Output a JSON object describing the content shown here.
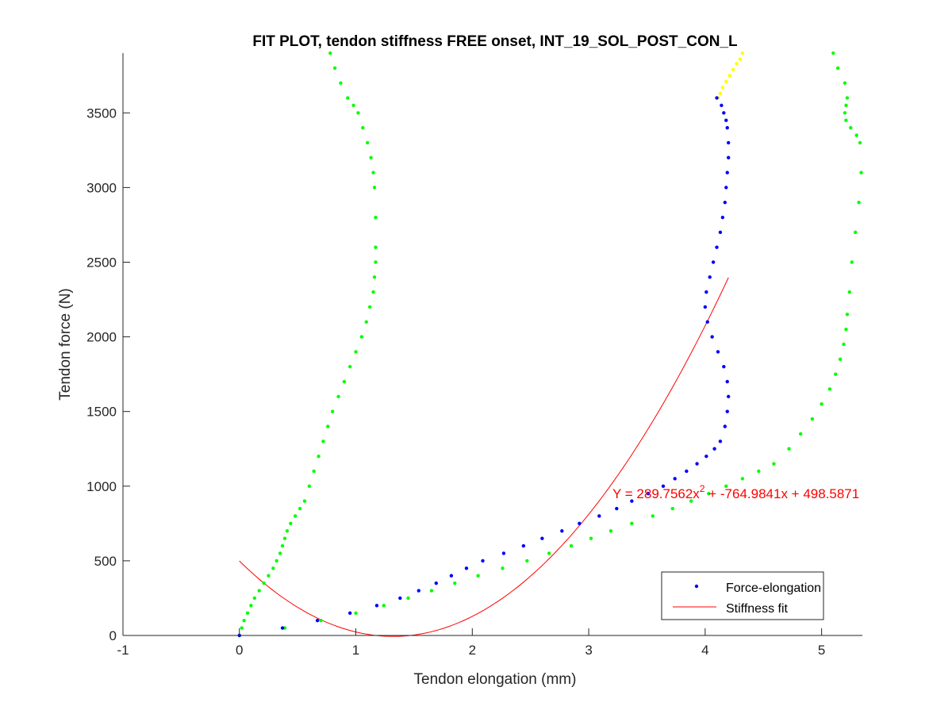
{
  "chart_data": {
    "type": "scatter",
    "title": "FIT PLOT, tendon stiffness FREE onset, INT_19_SOL_POST_CON_L",
    "xlabel": "Tendon elongation (mm)",
    "ylabel": "Tendon force (N)",
    "xlim": [
      -1,
      5.35
    ],
    "ylim": [
      0,
      3900
    ],
    "xticks": [
      -1,
      0,
      1,
      2,
      3,
      4,
      5
    ],
    "xtick_labels": [
      "-1",
      "0",
      "1",
      "2",
      "3",
      "4",
      "5"
    ],
    "yticks": [
      0,
      500,
      1000,
      1500,
      2000,
      2500,
      3000,
      3500
    ],
    "ytick_labels": [
      "0",
      "500",
      "1000",
      "1500",
      "2000",
      "2500",
      "3000",
      "3500"
    ],
    "grid": false,
    "legend_position": "bottom-right",
    "equation": "Y = 289.7562x^2 + -764.9841x + 498.5871",
    "colors": {
      "force_elongation": "#0000ff",
      "bounds": "#00ff00",
      "excluded": "#ffff00",
      "fit": "#ff0000"
    },
    "series": [
      {
        "name": "Force-elongation",
        "color": "#0000ff",
        "x": [
          0.0,
          0.37,
          0.67,
          0.95,
          1.18,
          1.38,
          1.54,
          1.69,
          1.82,
          1.95,
          2.09,
          2.27,
          2.44,
          2.6,
          2.77,
          2.92,
          3.09,
          3.24,
          3.37,
          3.51,
          3.64,
          3.74,
          3.84,
          3.93,
          4.01,
          4.08,
          4.13,
          4.17,
          4.19,
          4.2,
          4.19,
          4.16,
          4.11,
          4.06,
          4.02,
          4.0,
          4.01,
          4.04,
          4.07,
          4.1,
          4.13,
          4.15,
          4.17,
          4.18,
          4.19,
          4.2,
          4.2,
          4.19,
          4.18,
          4.16,
          4.14,
          4.1
        ],
        "y": [
          0,
          50,
          100,
          150,
          200,
          250,
          300,
          350,
          400,
          450,
          500,
          550,
          600,
          650,
          700,
          750,
          800,
          850,
          900,
          950,
          1000,
          1050,
          1100,
          1150,
          1200,
          1250,
          1300,
          1400,
          1500,
          1600,
          1700,
          1800,
          1900,
          2000,
          2100,
          2200,
          2300,
          2400,
          2500,
          2600,
          2700,
          2800,
          2900,
          3000,
          3100,
          3200,
          3300,
          3400,
          3450,
          3500,
          3550,
          3600
        ]
      },
      {
        "color": "#ffff00",
        "x": [
          4.11,
          4.13,
          4.15,
          4.18,
          4.21,
          4.24,
          4.27,
          4.3,
          4.32
        ],
        "y": [
          3600,
          3630,
          3670,
          3710,
          3750,
          3790,
          3830,
          3860,
          3900
        ]
      },
      {
        "color": "#00ff00",
        "x": [
          0.0,
          0.02,
          0.04,
          0.07,
          0.1,
          0.13,
          0.17,
          0.21,
          0.25,
          0.29,
          0.32,
          0.35,
          0.37,
          0.39,
          0.41,
          0.44,
          0.48,
          0.52,
          0.56,
          0.6,
          0.64,
          0.68,
          0.72,
          0.76,
          0.8,
          0.85,
          0.9,
          0.95,
          1.0,
          1.05,
          1.09,
          1.12,
          1.15,
          1.16,
          1.17,
          1.17,
          1.17,
          1.16,
          1.15,
          1.13,
          1.1,
          1.06,
          1.02,
          0.98,
          0.93,
          0.87,
          0.82,
          0.78
        ],
        "y": [
          0,
          50,
          100,
          150,
          200,
          250,
          300,
          350,
          400,
          450,
          500,
          550,
          600,
          650,
          700,
          750,
          800,
          850,
          900,
          1000,
          1100,
          1200,
          1300,
          1400,
          1500,
          1600,
          1700,
          1800,
          1900,
          2000,
          2100,
          2200,
          2300,
          2400,
          2500,
          2600,
          2800,
          3000,
          3100,
          3200,
          3300,
          3400,
          3500,
          3550,
          3600,
          3700,
          3800,
          3900
        ]
      },
      {
        "color": "#00ff00",
        "x": [
          0.0,
          0.39,
          0.7,
          1.0,
          1.24,
          1.45,
          1.65,
          1.85,
          2.05,
          2.26,
          2.47,
          2.66,
          2.85,
          3.02,
          3.19,
          3.37,
          3.55,
          3.72,
          3.88,
          4.03,
          4.18,
          4.32,
          4.46,
          4.59,
          4.72,
          4.82,
          4.92,
          5.0,
          5.07,
          5.12,
          5.16,
          5.19,
          5.21,
          5.22,
          5.24,
          5.26,
          5.29,
          5.32,
          5.34,
          5.33,
          5.3,
          5.25,
          5.21,
          5.2,
          5.21,
          5.22,
          5.2,
          5.14,
          5.1
        ],
        "y": [
          0,
          50,
          100,
          150,
          200,
          250,
          300,
          350,
          400,
          450,
          500,
          550,
          600,
          650,
          700,
          750,
          800,
          850,
          900,
          950,
          1000,
          1050,
          1100,
          1150,
          1250,
          1350,
          1450,
          1550,
          1650,
          1750,
          1850,
          1950,
          2050,
          2150,
          2300,
          2500,
          2700,
          2900,
          3100,
          3300,
          3350,
          3400,
          3450,
          3500,
          3550,
          3600,
          3700,
          3800,
          3900
        ]
      }
    ],
    "fit": {
      "name": "Stiffness fit",
      "color": "#ff0000",
      "a": 289.7562,
      "b": -764.9841,
      "c": 498.5871,
      "x_range": [
        0,
        4.2
      ]
    }
  }
}
